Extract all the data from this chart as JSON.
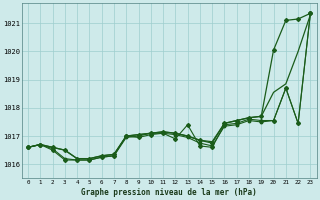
{
  "title": "Graphe pression niveau de la mer (hPa)",
  "bg_color": "#ceeaea",
  "grid_color": "#9ecece",
  "line_color": "#1a5c1a",
  "xlim": [
    -0.5,
    23.5
  ],
  "ylim": [
    1015.5,
    1021.7
  ],
  "yticks": [
    1016,
    1017,
    1018,
    1019,
    1020,
    1021
  ],
  "xticks": [
    0,
    1,
    2,
    3,
    4,
    5,
    6,
    7,
    8,
    9,
    10,
    11,
    12,
    13,
    14,
    15,
    16,
    17,
    18,
    19,
    20,
    21,
    22,
    23
  ],
  "line_A": [
    1016.6,
    1016.7,
    1016.6,
    1016.5,
    1016.2,
    1016.2,
    1016.3,
    1016.35,
    1017.0,
    1017.05,
    1017.1,
    1017.15,
    1017.1,
    1017.0,
    1016.85,
    1016.8,
    1017.45,
    1017.55,
    1017.65,
    1017.7,
    1018.55,
    1018.85,
    1020.0,
    1021.3
  ],
  "line_B_x": [
    0,
    1,
    2,
    3,
    4,
    5,
    6,
    7,
    8,
    9,
    10,
    11,
    12,
    13,
    14,
    15,
    16,
    17,
    18,
    19,
    20,
    21,
    22,
    23
  ],
  "line_B": [
    1016.6,
    1016.7,
    1016.55,
    1016.2,
    1016.15,
    1016.15,
    1016.25,
    1016.3,
    1016.95,
    1017.0,
    1017.1,
    1017.1,
    1017.05,
    1016.95,
    1016.75,
    1016.65,
    1017.35,
    1017.4,
    1017.55,
    1017.5,
    1017.55,
    1018.7,
    1017.45,
    1021.35
  ],
  "line_C": [
    1016.6,
    1016.7,
    1016.5,
    1016.15,
    1016.15,
    1016.15,
    1016.25,
    1016.3,
    1017.0,
    1016.95,
    1017.05,
    1017.1,
    1016.9,
    1017.4,
    1016.65,
    1016.6,
    1017.4,
    1017.45,
    1017.6,
    1017.55,
    1017.55,
    1018.7,
    1017.45,
    1021.35
  ],
  "line_D": [
    1016.6,
    1016.7,
    1016.6,
    1016.5,
    1016.2,
    1016.2,
    1016.3,
    1016.35,
    1017.0,
    1017.05,
    1017.1,
    1017.15,
    1017.1,
    1017.0,
    1016.85,
    1016.75,
    1017.45,
    1017.55,
    1017.65,
    1017.7,
    1020.05,
    1021.1,
    1021.15,
    1021.35
  ]
}
